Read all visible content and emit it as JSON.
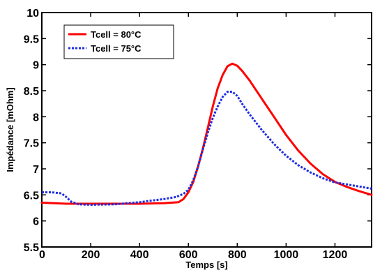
{
  "chart_data": {
    "type": "line",
    "xlabel": "Temps [s]",
    "ylabel": "Impédance [mOhm]",
    "xlim": [
      0,
      1350
    ],
    "ylim": [
      5.5,
      10
    ],
    "x_ticks": [
      0,
      200,
      400,
      600,
      800,
      1000,
      1200
    ],
    "y_ticks": [
      5.5,
      6,
      6.5,
      7,
      7.5,
      8,
      8.5,
      9,
      9.5,
      10
    ],
    "grid": false,
    "legend_position": "top-left",
    "series": [
      {
        "name": "Tcell = 80°C",
        "color": "#ff0000",
        "style": "solid",
        "points": [
          [
            0,
            6.35
          ],
          [
            50,
            6.34
          ],
          [
            100,
            6.33
          ],
          [
            200,
            6.33
          ],
          [
            300,
            6.33
          ],
          [
            400,
            6.33
          ],
          [
            500,
            6.34
          ],
          [
            560,
            6.36
          ],
          [
            580,
            6.42
          ],
          [
            600,
            6.55
          ],
          [
            620,
            6.75
          ],
          [
            640,
            7.05
          ],
          [
            660,
            7.4
          ],
          [
            680,
            7.8
          ],
          [
            700,
            8.2
          ],
          [
            720,
            8.55
          ],
          [
            740,
            8.8
          ],
          [
            760,
            8.97
          ],
          [
            780,
            9.02
          ],
          [
            800,
            8.98
          ],
          [
            820,
            8.88
          ],
          [
            850,
            8.7
          ],
          [
            900,
            8.35
          ],
          [
            950,
            8.0
          ],
          [
            1000,
            7.65
          ],
          [
            1050,
            7.35
          ],
          [
            1100,
            7.1
          ],
          [
            1150,
            6.9
          ],
          [
            1200,
            6.75
          ],
          [
            1250,
            6.65
          ],
          [
            1300,
            6.57
          ],
          [
            1350,
            6.5
          ]
        ]
      },
      {
        "name": "Tcell = 75°C",
        "color": "#1f2de0",
        "style": "dotted",
        "points": [
          [
            0,
            6.55
          ],
          [
            40,
            6.55
          ],
          [
            80,
            6.53
          ],
          [
            100,
            6.46
          ],
          [
            120,
            6.37
          ],
          [
            150,
            6.32
          ],
          [
            200,
            6.31
          ],
          [
            300,
            6.32
          ],
          [
            400,
            6.36
          ],
          [
            450,
            6.39
          ],
          [
            500,
            6.42
          ],
          [
            550,
            6.46
          ],
          [
            580,
            6.52
          ],
          [
            600,
            6.6
          ],
          [
            620,
            6.78
          ],
          [
            640,
            7.05
          ],
          [
            660,
            7.38
          ],
          [
            680,
            7.7
          ],
          [
            700,
            7.98
          ],
          [
            720,
            8.2
          ],
          [
            740,
            8.38
          ],
          [
            760,
            8.48
          ],
          [
            780,
            8.48
          ],
          [
            800,
            8.4
          ],
          [
            820,
            8.25
          ],
          [
            850,
            8.05
          ],
          [
            900,
            7.75
          ],
          [
            950,
            7.48
          ],
          [
            1000,
            7.25
          ],
          [
            1050,
            7.07
          ],
          [
            1100,
            6.93
          ],
          [
            1150,
            6.82
          ],
          [
            1200,
            6.74
          ],
          [
            1250,
            6.7
          ],
          [
            1300,
            6.66
          ],
          [
            1350,
            6.62
          ]
        ]
      }
    ]
  }
}
